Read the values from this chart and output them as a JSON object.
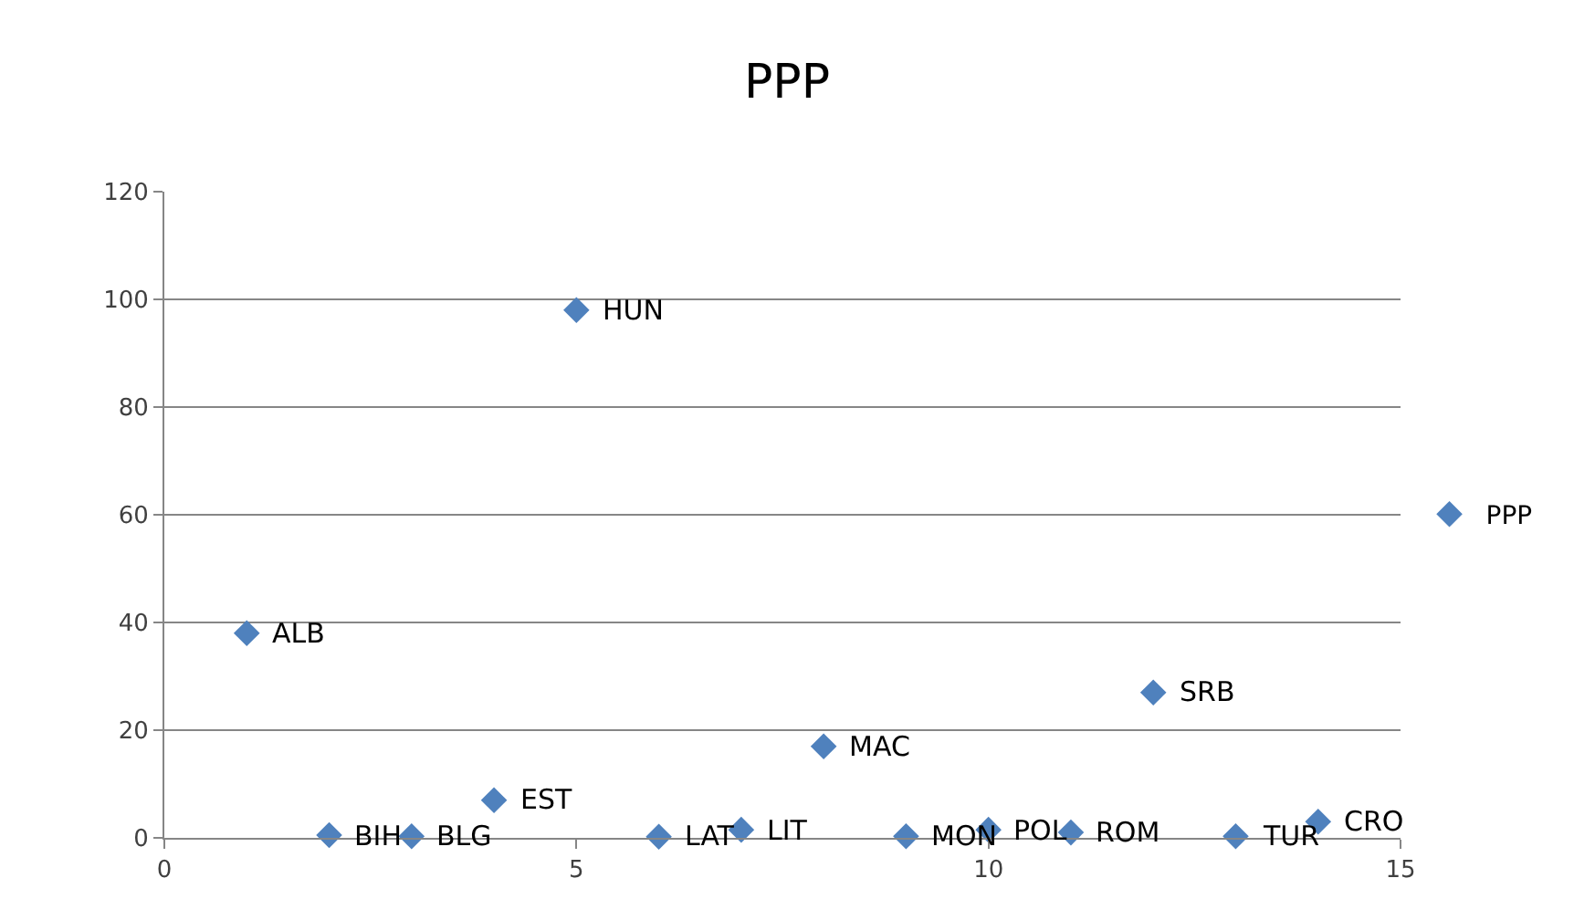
{
  "chart_data": {
    "type": "scatter",
    "title": "PPP",
    "x": [
      1,
      2,
      3,
      4,
      5,
      6,
      7,
      8,
      9,
      10,
      11,
      12,
      13,
      14
    ],
    "series": [
      {
        "name": "PPP",
        "color": "#4f81bd",
        "values": [
          38,
          0.5,
          0.3,
          7,
          98,
          0.2,
          1.5,
          17,
          0.3,
          1.5,
          1,
          27,
          0.3,
          3
        ]
      }
    ],
    "annotations": [
      {
        "text": "ALB",
        "x": 1,
        "y": 38
      },
      {
        "text": "BIH",
        "x": 2,
        "y": 0.5
      },
      {
        "text": "BLG",
        "x": 3,
        "y": 0.3
      },
      {
        "text": "EST",
        "x": 4,
        "y": 7
      },
      {
        "text": "HUN",
        "x": 5,
        "y": 98
      },
      {
        "text": "LAT",
        "x": 6,
        "y": 0.2
      },
      {
        "text": "LIT",
        "x": 7,
        "y": 1.5
      },
      {
        "text": "MAC",
        "x": 8,
        "y": 17
      },
      {
        "text": "MON",
        "x": 9,
        "y": 0.3
      },
      {
        "text": "POL",
        "x": 10,
        "y": 1.5
      },
      {
        "text": "ROM",
        "x": 11,
        "y": 1
      },
      {
        "text": "SRB",
        "x": 12,
        "y": 27
      },
      {
        "text": "TUR",
        "x": 13,
        "y": 0.3
      },
      {
        "text": "CRO",
        "x": 14,
        "y": 3
      }
    ],
    "xlim": [
      0,
      15
    ],
    "xticks": [
      0,
      5,
      10,
      15
    ],
    "ylim": [
      0,
      120
    ],
    "yticks": [
      0,
      20,
      40,
      60,
      80,
      100,
      120
    ],
    "grid": "y",
    "legend": "right",
    "marker": "diamond"
  }
}
